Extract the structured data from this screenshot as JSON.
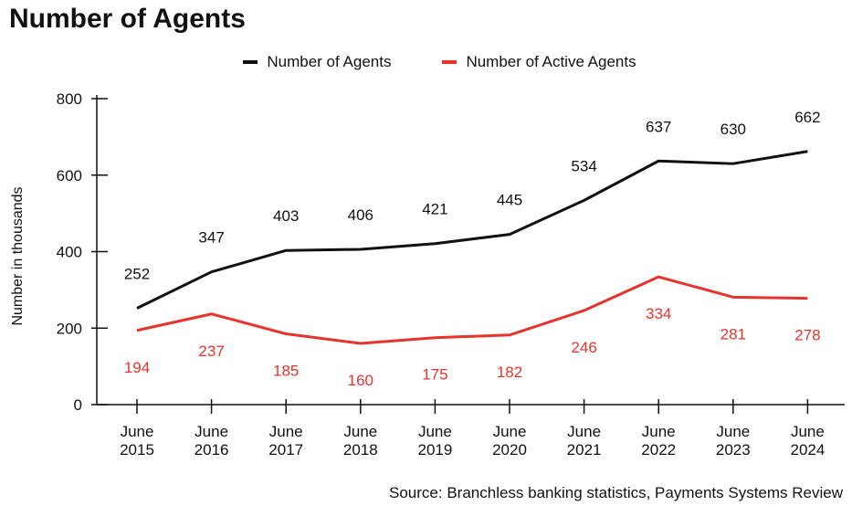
{
  "title": "Number of Agents",
  "source": "Source: Branchless banking statistics, Payments Systems Review",
  "colors": {
    "agents": "#111111",
    "active": "#e8332c"
  },
  "chart_data": {
    "type": "line",
    "title": "Number of Agents",
    "ylabel": "Number in thousands",
    "xlabel": "",
    "ylim": [
      0,
      800
    ],
    "yticks": [
      0,
      200,
      400,
      600,
      800
    ],
    "grid": false,
    "legend_position": "top-center",
    "categories": [
      [
        "June",
        "2015"
      ],
      [
        "June",
        "2016"
      ],
      [
        "June",
        "2017"
      ],
      [
        "June",
        "2018"
      ],
      [
        "June",
        "2019"
      ],
      [
        "June",
        "2020"
      ],
      [
        "June",
        "2021"
      ],
      [
        "June",
        "2022"
      ],
      [
        "June",
        "2023"
      ],
      [
        "June",
        "2024"
      ]
    ],
    "series": [
      {
        "name": "Number of Agents",
        "color": "#111111",
        "values": [
          252,
          347,
          403,
          406,
          421,
          445,
          534,
          637,
          630,
          662
        ]
      },
      {
        "name": "Number of Active Agents",
        "color": "#e8332c",
        "values": [
          194,
          237,
          185,
          160,
          175,
          182,
          246,
          334,
          281,
          278
        ]
      }
    ]
  }
}
